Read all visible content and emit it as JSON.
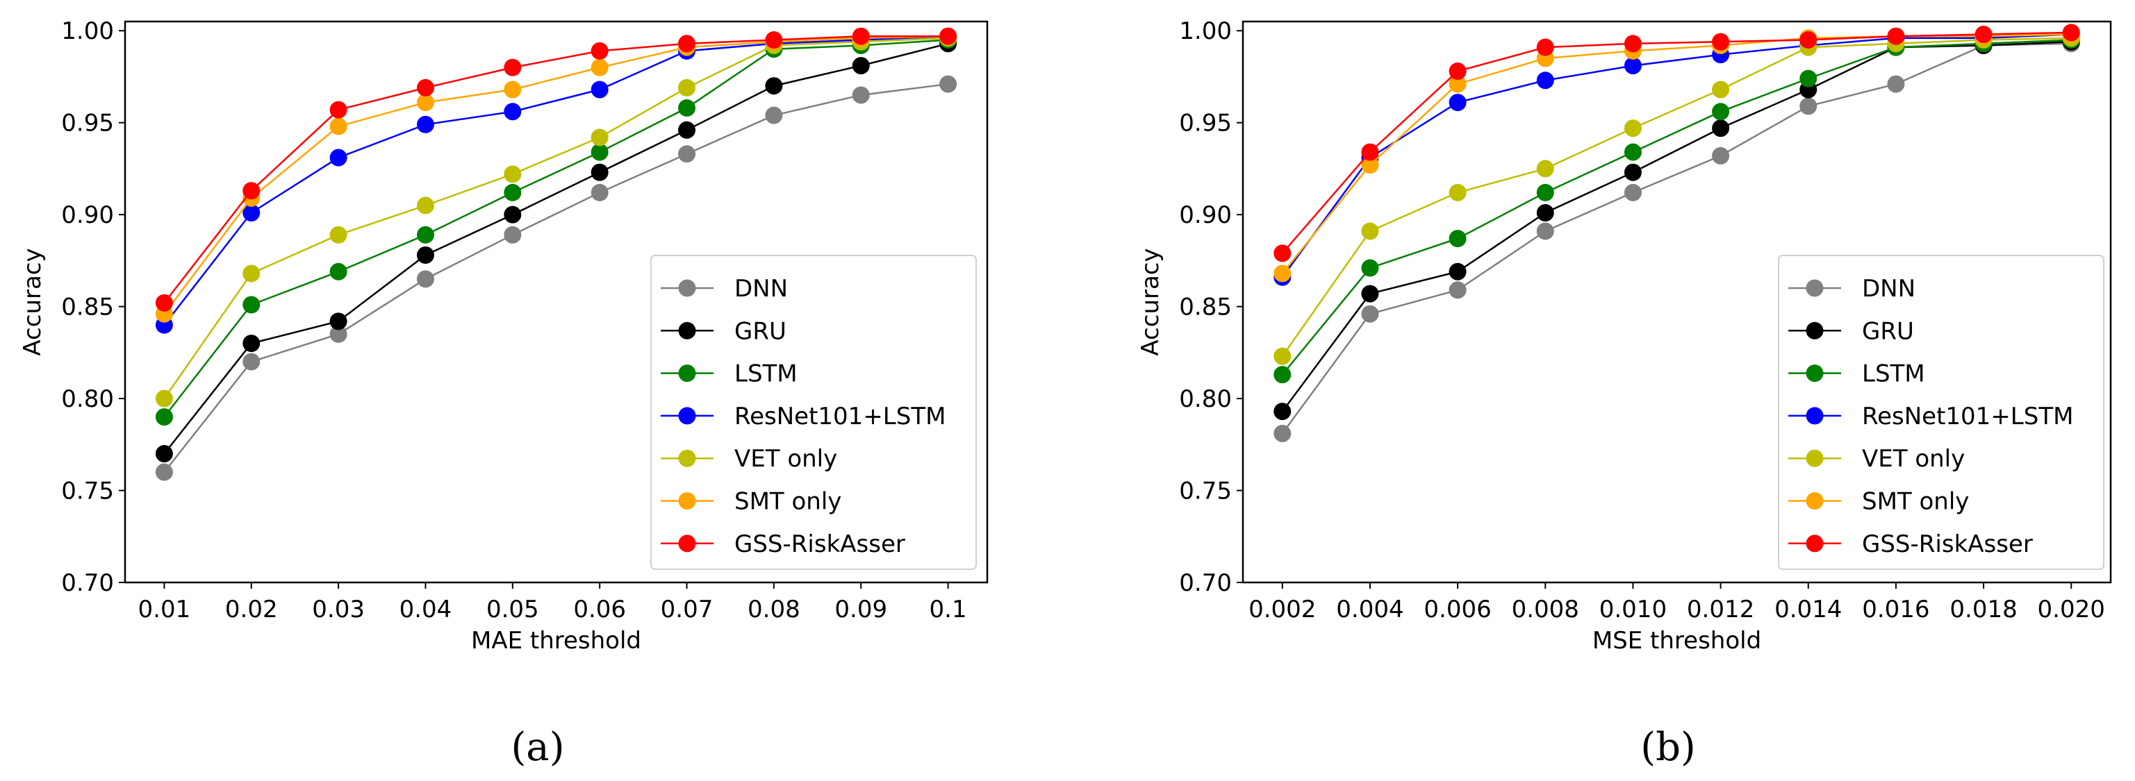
{
  "chart_data": [
    {
      "type": "line",
      "panel_label": "(a)",
      "panel_letter": "a",
      "xlabel": "MAE threshold",
      "ylabel": "Accuracy",
      "x": [
        0.01,
        0.02,
        0.03,
        0.04,
        0.05,
        0.06,
        0.07,
        0.08,
        0.09,
        0.1
      ],
      "xtick_labels": [
        "0.01",
        "0.02",
        "0.03",
        "0.04",
        "0.05",
        "0.06",
        "0.07",
        "0.08",
        "0.09",
        "0.1"
      ],
      "xlim": [
        0.0055,
        0.1045
      ],
      "ylim": [
        0.7,
        1.005
      ],
      "yticks": [
        0.7,
        0.75,
        0.8,
        0.85,
        0.9,
        0.95,
        1.0
      ],
      "ytick_labels": [
        "0.70",
        "0.75",
        "0.80",
        "0.85",
        "0.90",
        "0.95",
        "1.00"
      ],
      "legend_position": "lower-right",
      "grid": false,
      "series": [
        {
          "name": "DNN",
          "color": "#808080",
          "values": [
            0.76,
            0.82,
            0.835,
            0.865,
            0.889,
            0.912,
            0.933,
            0.954,
            0.965,
            0.971
          ]
        },
        {
          "name": "GRU",
          "color": "#000000",
          "values": [
            0.77,
            0.83,
            0.842,
            0.878,
            0.9,
            0.923,
            0.946,
            0.97,
            0.981,
            0.993
          ]
        },
        {
          "name": "LSTM",
          "color": "#008000",
          "values": [
            0.79,
            0.851,
            0.869,
            0.889,
            0.912,
            0.934,
            0.958,
            0.99,
            0.992,
            0.995
          ]
        },
        {
          "name": "ResNet101+LSTM",
          "color": "#0000ff",
          "values": [
            0.84,
            0.901,
            0.931,
            0.949,
            0.956,
            0.968,
            0.989,
            0.993,
            0.995,
            0.997
          ]
        },
        {
          "name": "VET only",
          "color": "#bfbf00",
          "values": [
            0.8,
            0.868,
            0.889,
            0.905,
            0.922,
            0.942,
            0.969,
            0.992,
            0.994,
            0.996
          ]
        },
        {
          "name": "SMT only",
          "color": "#ffa500",
          "values": [
            0.846,
            0.909,
            0.948,
            0.961,
            0.968,
            0.98,
            0.991,
            0.994,
            0.996,
            0.997
          ]
        },
        {
          "name": "GSS-RiskAsser",
          "color": "#ff0000",
          "values": [
            0.852,
            0.913,
            0.957,
            0.969,
            0.98,
            0.989,
            0.993,
            0.995,
            0.997,
            0.997
          ]
        }
      ]
    },
    {
      "type": "line",
      "panel_label": "(b)",
      "panel_letter": "b",
      "xlabel": "MSE threshold",
      "ylabel": "Accuracy",
      "x": [
        0.002,
        0.004,
        0.006,
        0.008,
        0.01,
        0.012,
        0.014,
        0.016,
        0.018,
        0.02
      ],
      "xtick_labels": [
        "0.002",
        "0.004",
        "0.006",
        "0.008",
        "0.010",
        "0.012",
        "0.014",
        "0.016",
        "0.018",
        "0.020"
      ],
      "xlim": [
        0.0011,
        0.0209
      ],
      "ylim": [
        0.7,
        1.005
      ],
      "yticks": [
        0.7,
        0.75,
        0.8,
        0.85,
        0.9,
        0.95,
        1.0
      ],
      "ytick_labels": [
        "0.70",
        "0.75",
        "0.80",
        "0.85",
        "0.90",
        "0.95",
        "1.00"
      ],
      "legend_position": "lower-right",
      "grid": false,
      "series": [
        {
          "name": "DNN",
          "color": "#808080",
          "values": [
            0.781,
            0.846,
            0.859,
            0.891,
            0.912,
            0.932,
            0.959,
            0.971,
            0.992,
            0.993
          ]
        },
        {
          "name": "GRU",
          "color": "#000000",
          "values": [
            0.793,
            0.857,
            0.869,
            0.901,
            0.923,
            0.947,
            0.968,
            0.991,
            0.992,
            0.994
          ]
        },
        {
          "name": "LSTM",
          "color": "#008000",
          "values": [
            0.813,
            0.871,
            0.887,
            0.912,
            0.934,
            0.956,
            0.974,
            0.991,
            0.993,
            0.995
          ]
        },
        {
          "name": "ResNet101+LSTM",
          "color": "#0000ff",
          "values": [
            0.866,
            0.931,
            0.961,
            0.973,
            0.981,
            0.987,
            0.992,
            0.996,
            0.996,
            0.998
          ]
        },
        {
          "name": "VET only",
          "color": "#bfbf00",
          "values": [
            0.823,
            0.891,
            0.912,
            0.925,
            0.947,
            0.968,
            0.991,
            0.993,
            0.995,
            0.996
          ]
        },
        {
          "name": "SMT only",
          "color": "#ffa500",
          "values": [
            0.868,
            0.927,
            0.971,
            0.985,
            0.989,
            0.992,
            0.996,
            0.997,
            0.997,
            0.998
          ]
        },
        {
          "name": "GSS-RiskAsser",
          "color": "#ff0000",
          "values": [
            0.879,
            0.934,
            0.978,
            0.991,
            0.993,
            0.994,
            0.995,
            0.997,
            0.998,
            0.999
          ]
        }
      ]
    }
  ]
}
